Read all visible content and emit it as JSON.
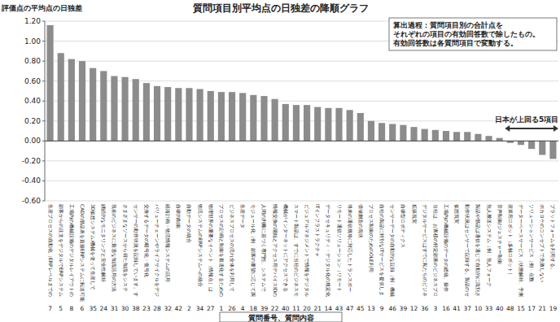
{
  "chart_data": {
    "type": "bar",
    "title": "質問項目別平均点の日独差の降順グラフ",
    "y_label": "評価点の平均点の日独差",
    "x_label": "質問番号、質問内容",
    "note_lines": [
      "算出過程：質問項目別の合計点を",
      "それぞれの項目の有効回答数で除したもの。",
      "有効回答数は各質問項目で変動する。"
    ],
    "highlight_text": "日本が上回る5項目",
    "categories": [
      "7",
      "5",
      "8",
      "6",
      "35",
      "24",
      "31",
      "30",
      "38",
      "23",
      "28",
      "32",
      "42",
      "2",
      "34",
      "27",
      "1",
      "26",
      "4",
      "18",
      "39",
      "22",
      "40",
      "11",
      "20",
      "21",
      "14",
      "43",
      "47",
      "45",
      "13",
      "9",
      "46",
      "39",
      "12",
      "36",
      "3",
      "16",
      "41",
      "37",
      "10",
      "33",
      "40",
      "48",
      "15",
      "17",
      "21",
      "19"
    ],
    "question_texts": [
      "生産プロセスの自動化（ERPレベルまでの",
      "顧客からの注文をデジタルでERPシステム",
      "工場内の機械設備のデジタルレイアウトの",
      "CADの部品表を直接ERPシステムに転送可能",
      "3D仮想システム/機械を使って生産して",
      "継続的なモニタリングと安全性解析",
      "現在のビジネスに最適な知識活用の方法",
      "さまざまなソースから得た知識をシステ",
      "センサーの動作状況を記録しています。す",
      "交換するデータの暗号化・復号化",
      "バリューチェーンやライフサイクルをデジ",
      "経路計画・物流情報システムの活用",
      "自律的制御",
      "自動データの統合",
      "物流システムのERPシステムへの統合",
      "物理世界の重要なイベント（情報点）は",
      "プロセスの計画と制御を最適化するための",
      "ビジネスプロセスの流れ全体を利用して",
      "生産データ",
      "モジュール化（例：顧客の要望に応じて調",
      "人間の判断に基づく専門性、システムで",
      "情報交換の開始とアクセス用デバイスIDの",
      "機械がインターネットにアクセスできる",
      "スマート製品は、すでに当社のビジネスモ",
      "ビジュアルマネジメントで情報をデジタル",
      "ITインフラストラクチャ",
      "データセキュリティ・デジタル化の規定化",
      "リモート通信ソリューション（リモート",
      "将来の通信規格に対応したトランスポー",
      "価値創造の現状",
      "プロセス制御のためのOLE利用",
      "自社の製品に特別なITサービスを提供しま",
      "センサーデータの自動的な記録（例：機械",
      "自律型ロボティクス",
      "拡張現実",
      "デジタルサービスはすでに私たちのビジネ",
      "当社は、お客様の特定顧客のビジネスプロ",
      "工場内の機械設備のデータの総統、操作",
      "仮想現実",
      "動作状況はセンサーで記録する。製品のセ",
      "製品や部品は通信を通じて自動的に識別さ",
      "無人搬送システム（例：無人フォーク",
      "音声制御/ジェスチャー制御",
      "産業用ロボット（多軸ロボット）",
      "データーベースサービス（状態解析、予測",
      "ソリューションサービス（例：点数",
      "ポカヨケのコンセプトで失敗しない",
      "プラットフォームを利用する。"
    ],
    "values": [
      1.16,
      0.88,
      0.82,
      0.8,
      0.73,
      0.7,
      0.65,
      0.64,
      0.62,
      0.58,
      0.55,
      0.54,
      0.53,
      0.53,
      0.52,
      0.5,
      0.49,
      0.49,
      0.48,
      0.46,
      0.45,
      0.42,
      0.37,
      0.36,
      0.36,
      0.34,
      0.33,
      0.33,
      0.31,
      0.28,
      0.2,
      0.18,
      0.17,
      0.16,
      0.14,
      0.12,
      0.11,
      0.1,
      0.09,
      0.09,
      0.07,
      0.05,
      0.03,
      -0.02,
      -0.04,
      -0.08,
      -0.14,
      -0.18
    ],
    "color": "#8c8c8c",
    "ylim": [
      -0.6,
      1.2
    ],
    "yticks": [
      {
        "value": -0.6,
        "label": "-0.60"
      },
      {
        "value": -0.4,
        "label": "-0.40"
      },
      {
        "value": -0.2,
        "label": "-0.20"
      },
      {
        "value": 0,
        "label": "0.00"
      },
      {
        "value": 0.2,
        "label": "0.20"
      },
      {
        "value": 0.4,
        "label": "0.40"
      },
      {
        "value": 0.6,
        "label": "0.60"
      },
      {
        "value": 0.8,
        "label": "0.80"
      },
      {
        "value": 1.0,
        "label": "1.00"
      },
      {
        "value": 1.2,
        "label": "1.20"
      }
    ],
    "grid": true
  }
}
